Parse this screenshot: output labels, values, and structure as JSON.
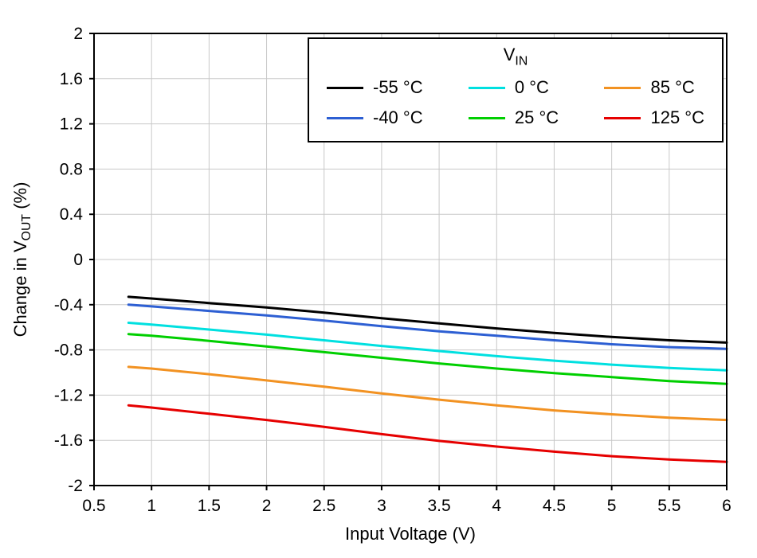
{
  "chart_data": {
    "type": "line",
    "xlabel": "Input Voltage (V)",
    "ylabel_pre": "Change in V",
    "ylabel_sub": "OUT",
    "ylabel_post": " (%)",
    "xlim": [
      0.5,
      6
    ],
    "ylim": [
      -2,
      2
    ],
    "grid": true,
    "grid_color": "#c8c8c8",
    "axis_color": "#000000",
    "x_ticks": [
      0.5,
      1,
      1.5,
      2,
      2.5,
      3,
      3.5,
      4,
      4.5,
      5,
      5.5,
      6
    ],
    "x_tick_labels": [
      "0.5",
      "1",
      "1.5",
      "2",
      "2.5",
      "3",
      "3.5",
      "4",
      "4.5",
      "5",
      "5.5",
      "6"
    ],
    "y_ticks": [
      2,
      1.6,
      1.2,
      0.8,
      0.4,
      0,
      -0.4,
      -0.8,
      -1.2,
      -1.6,
      -2
    ],
    "y_tick_labels": [
      "2",
      "1.6",
      "1.2",
      "0.8",
      "0.4",
      "0",
      "-0.4",
      "-0.8",
      "-1.2",
      "-1.6",
      "-2"
    ],
    "legend": {
      "title_main": "V",
      "title_sub": "IN",
      "position": "top-right"
    },
    "x": [
      0.8,
      1,
      1.5,
      2,
      2.5,
      3,
      3.5,
      4,
      4.5,
      5,
      5.5,
      6
    ],
    "series": [
      {
        "name": "-55 °C",
        "color": "#000000",
        "values": [
          -0.33,
          -0.345,
          -0.385,
          -0.425,
          -0.47,
          -0.52,
          -0.565,
          -0.61,
          -0.65,
          -0.685,
          -0.715,
          -0.735
        ]
      },
      {
        "name": "-40 °C",
        "color": "#2d5fd3",
        "values": [
          -0.4,
          -0.415,
          -0.455,
          -0.495,
          -0.54,
          -0.59,
          -0.635,
          -0.675,
          -0.715,
          -0.75,
          -0.775,
          -0.79
        ]
      },
      {
        "name": "0 °C",
        "color": "#00e0e0",
        "values": [
          -0.56,
          -0.575,
          -0.62,
          -0.665,
          -0.715,
          -0.765,
          -0.81,
          -0.855,
          -0.895,
          -0.93,
          -0.96,
          -0.98
        ]
      },
      {
        "name": "25 °C",
        "color": "#00cf00",
        "values": [
          -0.66,
          -0.675,
          -0.72,
          -0.77,
          -0.82,
          -0.87,
          -0.92,
          -0.965,
          -1.005,
          -1.04,
          -1.075,
          -1.1
        ]
      },
      {
        "name": "85 °C",
        "color": "#f29222",
        "values": [
          -0.95,
          -0.965,
          -1.015,
          -1.07,
          -1.125,
          -1.185,
          -1.24,
          -1.29,
          -1.335,
          -1.37,
          -1.4,
          -1.42
        ]
      },
      {
        "name": "125 °C",
        "color": "#e60000",
        "values": [
          -1.29,
          -1.31,
          -1.365,
          -1.42,
          -1.48,
          -1.545,
          -1.605,
          -1.655,
          -1.7,
          -1.74,
          -1.77,
          -1.79
        ]
      }
    ]
  }
}
